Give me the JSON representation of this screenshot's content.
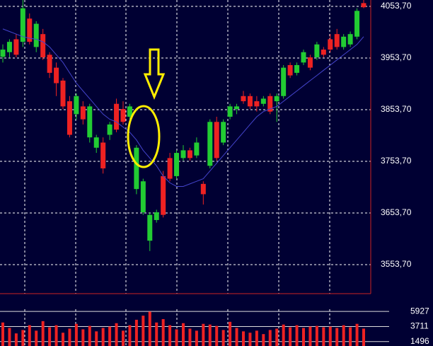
{
  "chart_data": [
    {
      "type": "candlestick",
      "up_color": "#22cc33",
      "down_color": "#ee2222",
      "grid": true,
      "open": [
        3956,
        3965,
        3990,
        3985,
        4030,
        3975,
        4000,
        3960,
        3935,
        3910,
        3870,
        3845,
        3860,
        3800,
        3780,
        3790,
        3805,
        3865,
        3855,
        3840,
        3700,
        3655,
        3600,
        3640,
        3725,
        3760,
        3725,
        3760,
        3775,
        3765,
        3710,
        3745,
        3830,
        3790,
        3840,
        3855,
        3880,
        3880,
        3870,
        3865,
        3880,
        3870,
        3880,
        3940,
        3925,
        3945,
        3955,
        3955,
        3970,
        3990,
        4000,
        3975,
        3980,
        3995,
        4060
      ],
      "high": [
        3980,
        3990,
        4000,
        4066,
        4040,
        4025,
        4010,
        3965,
        3945,
        3915,
        3880,
        3885,
        3870,
        3865,
        3805,
        3800,
        3830,
        3875,
        3870,
        3865,
        3785,
        3720,
        3655,
        3660,
        3735,
        3770,
        3775,
        3785,
        3780,
        3800,
        3715,
        3835,
        3840,
        3835,
        3865,
        3865,
        3890,
        3885,
        3880,
        3880,
        3885,
        3885,
        3940,
        3945,
        3945,
        3970,
        3960,
        3985,
        3975,
        4000,
        4010,
        4000,
        4005,
        4050,
        4066
      ],
      "low": [
        3945,
        3955,
        3955,
        3975,
        3980,
        3965,
        3950,
        3915,
        3880,
        3855,
        3800,
        3835,
        3825,
        3790,
        3770,
        3730,
        3795,
        3810,
        3825,
        3835,
        3690,
        3650,
        3580,
        3635,
        3645,
        3715,
        3720,
        3755,
        3755,
        3760,
        3670,
        3740,
        3755,
        3785,
        3835,
        3845,
        3865,
        3855,
        3850,
        3860,
        3845,
        3830,
        3875,
        3915,
        3920,
        3940,
        3930,
        3950,
        3955,
        3965,
        3970,
        3970,
        3975,
        3990,
        4050
      ],
      "close": [
        3970,
        3985,
        3960,
        4050,
        3985,
        4020,
        3955,
        3925,
        3905,
        3860,
        3805,
        3880,
        3835,
        3860,
        3800,
        3740,
        3825,
        3815,
        3830,
        3860,
        3780,
        3715,
        3650,
        3655,
        3650,
        3720,
        3770,
        3775,
        3760,
        3790,
        3690,
        3830,
        3760,
        3830,
        3860,
        3860,
        3870,
        3860,
        3860,
        3875,
        3850,
        3880,
        3935,
        3920,
        3940,
        3965,
        3935,
        3980,
        3960,
        3970,
        3975,
        3995,
        4000,
        4045,
        4052
      ],
      "ma": {
        "color": "#4444cc",
        "values": [
          4010,
          4005,
          4000,
          3995,
          3992,
          3990,
          3985,
          3975,
          3960,
          3945,
          3925,
          3905,
          3890,
          3875,
          3860,
          3845,
          3835,
          3830,
          3820,
          3810,
          3795,
          3775,
          3760,
          3745,
          3725,
          3712,
          3705,
          3705,
          3710,
          3715,
          3720,
          3735,
          3750,
          3765,
          3780,
          3795,
          3810,
          3825,
          3840,
          3850,
          3855,
          3860,
          3870,
          3880,
          3890,
          3900,
          3910,
          3920,
          3930,
          3940,
          3950,
          3960,
          3970,
          3980,
          3995
        ]
      },
      "ylim": [
        3497.5,
        4066
      ],
      "yticks": [
        {
          "value": 4053.7,
          "label": "4053,70"
        },
        {
          "value": 3953.7,
          "label": "3953,70"
        },
        {
          "value": 3853.7,
          "label": "3853,70"
        },
        {
          "value": 3753.7,
          "label": "3753,70"
        },
        {
          "value": 3653.7,
          "label": "3653,70"
        },
        {
          "value": 3553.7,
          "label": "3553,70"
        }
      ]
    },
    {
      "type": "bar",
      "color": "#ee2222",
      "values": [
        4300,
        3500,
        2700,
        3200,
        3900,
        3100,
        4500,
        3600,
        3900,
        2800,
        3400,
        4100,
        3300,
        3800,
        3000,
        3500,
        3700,
        4200,
        3100,
        3900,
        4700,
        5300,
        5900,
        4300,
        4800,
        3900,
        3300,
        4200,
        3400,
        3100,
        4100,
        4000,
        3800,
        3200,
        4400,
        3500,
        3000,
        2800,
        3100,
        2600,
        3200,
        3400,
        4000,
        3600,
        3900,
        3500,
        3700,
        3800,
        3600,
        3700,
        3500,
        3900,
        3600,
        4100,
        3400
      ],
      "ylim": [
        850,
        6250
      ],
      "yticks": [
        5927,
        3711,
        1496
      ]
    }
  ]
}
